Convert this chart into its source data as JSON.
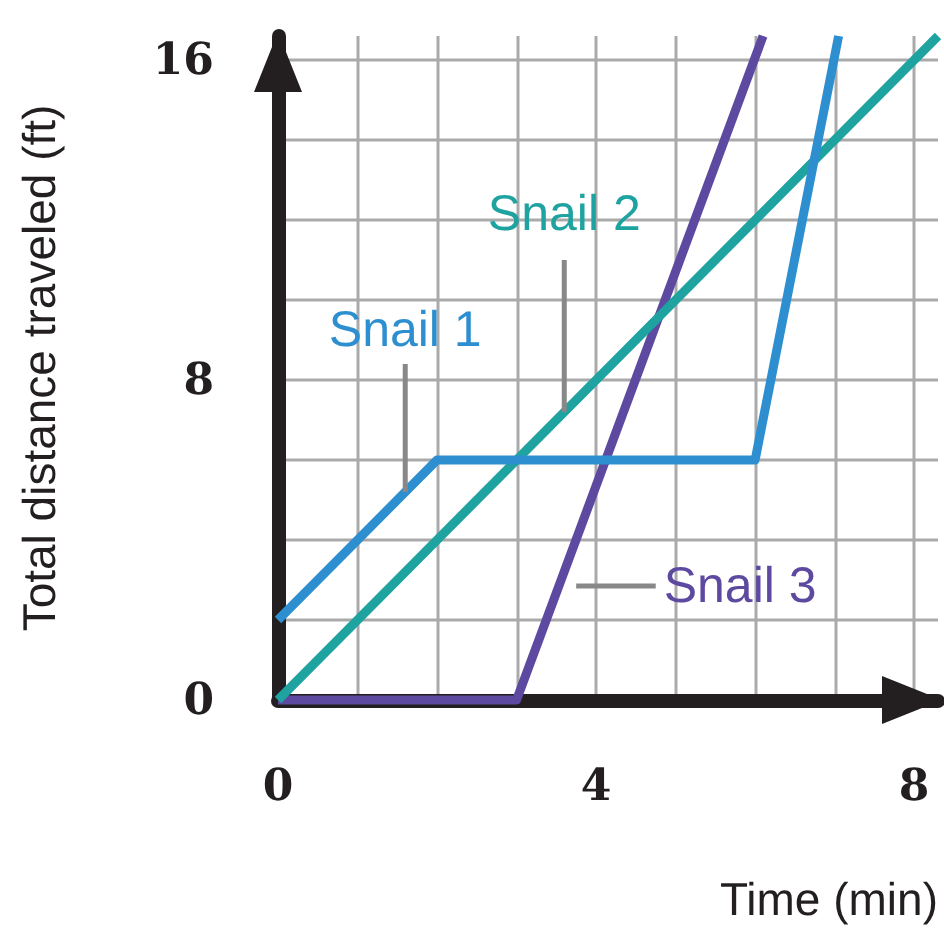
{
  "chart_data": {
    "type": "line",
    "xlabel": "Time (min)",
    "ylabel": "Total distance traveled (ft)",
    "xlim": [
      0,
      8.3
    ],
    "ylim": [
      0,
      16.6
    ],
    "xticks": [
      0,
      {
        "value": 1,
        "label": null
      },
      {
        "value": 2,
        "label": null
      },
      {
        "value": 3,
        "label": null
      },
      4,
      {
        "value": 5,
        "label": null
      },
      {
        "value": 6,
        "label": null
      },
      {
        "value": 7,
        "label": null
      },
      8
    ],
    "yticks": [
      0,
      {
        "value": 2,
        "label": null
      },
      {
        "value": 4,
        "label": null
      },
      {
        "value": 6,
        "label": null
      },
      8,
      {
        "value": 10,
        "label": null
      },
      {
        "value": 12,
        "label": null
      },
      {
        "value": 14,
        "label": null
      },
      16
    ],
    "grid": true,
    "legend": false,
    "marker": "none",
    "line_style": "solid",
    "series": [
      {
        "name": "Snail 1",
        "color": "#2e8fd0",
        "x": [
          0,
          2,
          6,
          7.05
        ],
        "values": [
          2,
          6,
          6,
          16.6
        ]
      },
      {
        "name": "Snail 2",
        "color": "#1fa3a0",
        "x": [
          0,
          8.3
        ],
        "values": [
          0,
          16.6
        ]
      },
      {
        "name": "Snail 3",
        "color": "#5d4aa0",
        "x": [
          0,
          3,
          6.1
        ],
        "values": [
          0,
          0,
          16.6
        ]
      }
    ]
  }
}
